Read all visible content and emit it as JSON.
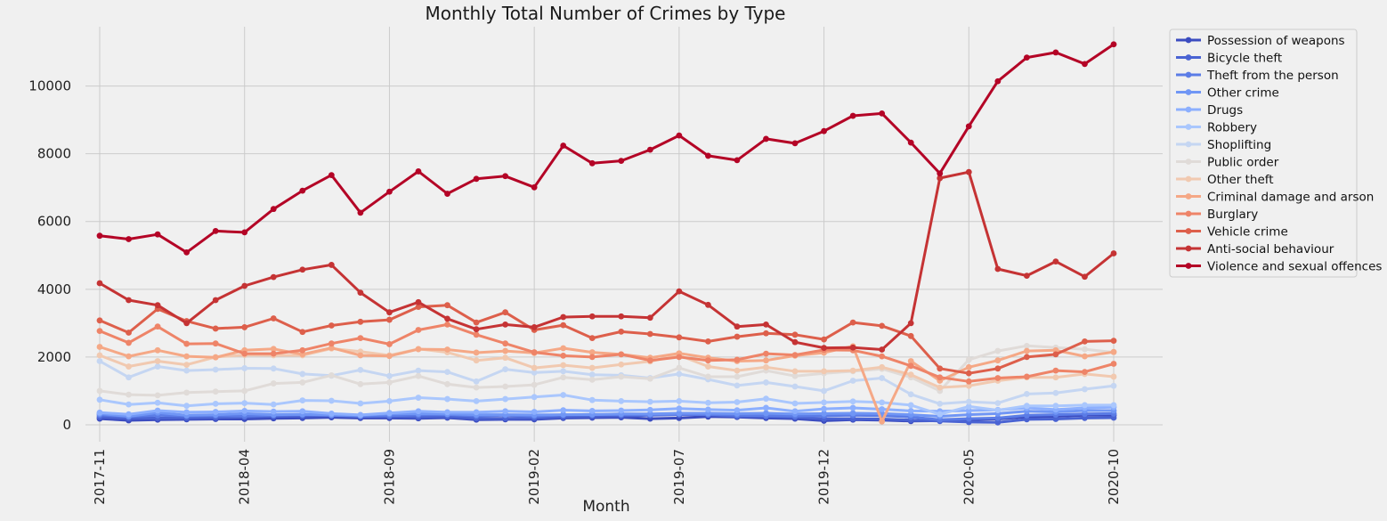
{
  "chart_data": {
    "type": "line",
    "title": "Monthly Total Number of Crimes by Type",
    "xlabel": "Month",
    "ylabel": "",
    "x": [
      "2017-11",
      "2017-12",
      "2018-01",
      "2018-02",
      "2018-03",
      "2018-04",
      "2018-05",
      "2018-06",
      "2018-07",
      "2018-08",
      "2018-09",
      "2018-10",
      "2018-11",
      "2018-12",
      "2019-01",
      "2019-02",
      "2019-03",
      "2019-04",
      "2019-05",
      "2019-06",
      "2019-07",
      "2019-08",
      "2019-09",
      "2019-10",
      "2019-11",
      "2019-12",
      "2020-01",
      "2020-02",
      "2020-03",
      "2020-04",
      "2020-05",
      "2020-06",
      "2020-07",
      "2020-08",
      "2020-09",
      "2020-10"
    ],
    "xticks": [
      "2017-11",
      "2018-04",
      "2018-09",
      "2019-02",
      "2019-07",
      "2019-12",
      "2020-05",
      "2020-10"
    ],
    "yticks": [
      0,
      2000,
      4000,
      6000,
      8000,
      10000
    ],
    "ylim": [
      -500,
      11750
    ],
    "grid": true,
    "legend_position": "outside-right",
    "series": [
      {
        "name": "Possession of weapons",
        "color": "#3b4cc0",
        "values": [
          180,
          130,
          150,
          160,
          170,
          170,
          190,
          200,
          220,
          200,
          200,
          190,
          210,
          150,
          160,
          160,
          200,
          210,
          220,
          180,
          200,
          240,
          230,
          200,
          180,
          120,
          150,
          140,
          110,
          120,
          150,
          170,
          230,
          250,
          280,
          280
        ]
      },
      {
        "name": "Bicycle theft",
        "color": "#4a63d3",
        "values": [
          230,
          190,
          200,
          200,
          210,
          230,
          250,
          260,
          270,
          250,
          240,
          230,
          240,
          190,
          190,
          200,
          230,
          250,
          260,
          280,
          300,
          300,
          250,
          240,
          220,
          180,
          180,
          170,
          140,
          110,
          80,
          70,
          160,
          170,
          200,
          210
        ]
      },
      {
        "name": "Theft from the person",
        "color": "#5b7ce6",
        "values": [
          290,
          240,
          280,
          260,
          270,
          260,
          280,
          300,
          280,
          250,
          270,
          290,
          300,
          260,
          280,
          250,
          290,
          310,
          300,
          290,
          310,
          300,
          280,
          270,
          260,
          270,
          280,
          270,
          230,
          150,
          180,
          200,
          280,
          300,
          320,
          330
        ]
      },
      {
        "name": "Other crime",
        "color": "#7096f5",
        "values": [
          330,
          250,
          360,
          280,
          300,
          330,
          300,
          310,
          290,
          280,
          320,
          330,
          320,
          300,
          300,
          290,
          300,
          300,
          320,
          320,
          340,
          340,
          330,
          340,
          320,
          330,
          340,
          330,
          300,
          250,
          300,
          330,
          400,
          380,
          420,
          420
        ]
      },
      {
        "name": "Drugs",
        "color": "#8caffe",
        "values": [
          360,
          310,
          420,
          370,
          380,
          410,
          390,
          400,
          330,
          290,
          350,
          400,
          370,
          370,
          400,
          380,
          430,
          410,
          420,
          440,
          480,
          450,
          430,
          500,
          400,
          470,
          500,
          460,
          410,
          400,
          420,
          440,
          500,
          450,
          500,
          520
        ]
      },
      {
        "name": "Robbery",
        "color": "#aac7fd",
        "values": [
          740,
          600,
          650,
          560,
          620,
          640,
          600,
          720,
          710,
          630,
          700,
          800,
          760,
          700,
          760,
          820,
          880,
          730,
          700,
          680,
          700,
          650,
          670,
          770,
          630,
          660,
          690,
          660,
          580,
          310,
          540,
          430,
          560,
          560,
          580,
          580
        ]
      },
      {
        "name": "Shoplifting",
        "color": "#c5d6f2",
        "values": [
          1880,
          1400,
          1720,
          1600,
          1630,
          1670,
          1660,
          1500,
          1450,
          1620,
          1440,
          1600,
          1560,
          1280,
          1640,
          1540,
          1580,
          1480,
          1460,
          1380,
          1500,
          1340,
          1160,
          1250,
          1130,
          1000,
          1300,
          1380,
          900,
          620,
          680,
          640,
          910,
          940,
          1050,
          1150
        ]
      },
      {
        "name": "Public order",
        "color": "#e0dbd8",
        "values": [
          1000,
          890,
          870,
          950,
          980,
          1000,
          1220,
          1250,
          1460,
          1200,
          1250,
          1440,
          1200,
          1100,
          1130,
          1180,
          1400,
          1330,
          1420,
          1360,
          1680,
          1420,
          1420,
          1600,
          1440,
          1520,
          1580,
          1650,
          1400,
          1000,
          1920,
          2180,
          2330,
          2280,
          2230,
          2140
        ]
      },
      {
        "name": "Other theft",
        "color": "#f1c9b0",
        "values": [
          2050,
          1720,
          1880,
          1770,
          2000,
          2060,
          2050,
          2050,
          2250,
          2160,
          2050,
          2240,
          2140,
          1900,
          1980,
          1680,
          1760,
          1680,
          1780,
          1870,
          2050,
          1720,
          1600,
          1700,
          1580,
          1580,
          1600,
          1700,
          1480,
          1100,
          1150,
          1300,
          1400,
          1400,
          1500,
          1420
        ]
      },
      {
        "name": "Criminal damage and arson",
        "color": "#f5a886",
        "values": [
          2300,
          2020,
          2200,
          2020,
          1990,
          2200,
          2240,
          2080,
          2270,
          2050,
          2030,
          2230,
          2220,
          2130,
          2180,
          2120,
          2260,
          2140,
          2080,
          1980,
          2110,
          1980,
          1880,
          1900,
          2040,
          2130,
          2320,
          100,
          1880,
          1300,
          1700,
          1900,
          2180,
          2200,
          2020,
          2150
        ]
      },
      {
        "name": "Burglary",
        "color": "#ee8468",
        "values": [
          2770,
          2420,
          2900,
          2390,
          2400,
          2100,
          2100,
          2200,
          2400,
          2560,
          2380,
          2800,
          2960,
          2660,
          2400,
          2140,
          2040,
          2000,
          2080,
          1900,
          2000,
          1900,
          1920,
          2100,
          2060,
          2210,
          2200,
          2020,
          1740,
          1400,
          1280,
          1380,
          1420,
          1600,
          1560,
          1800
        ]
      },
      {
        "name": "Vehicle crime",
        "color": "#dd5f4b",
        "values": [
          3080,
          2720,
          3420,
          3060,
          2840,
          2880,
          3140,
          2740,
          2930,
          3040,
          3100,
          3480,
          3530,
          3020,
          3320,
          2800,
          2940,
          2560,
          2750,
          2680,
          2580,
          2460,
          2600,
          2700,
          2660,
          2520,
          3020,
          2920,
          2620,
          1660,
          1520,
          1660,
          2000,
          2080,
          2460,
          2480
        ]
      },
      {
        "name": "Anti-social behaviour",
        "color": "#c53334",
        "values": [
          4180,
          3680,
          3530,
          3000,
          3680,
          4100,
          4360,
          4580,
          4720,
          3900,
          3320,
          3620,
          3130,
          2820,
          2960,
          2880,
          3180,
          3200,
          3200,
          3160,
          3940,
          3540,
          2900,
          2960,
          2440,
          2270,
          2280,
          2220,
          3000,
          7280,
          7460,
          4600,
          4400,
          4820,
          4370,
          5060
        ]
      },
      {
        "name": "Violence and sexual offences",
        "color": "#b40426",
        "values": [
          5580,
          5480,
          5620,
          5090,
          5720,
          5680,
          6370,
          6910,
          7370,
          6260,
          6880,
          7480,
          6820,
          7260,
          7340,
          7010,
          8240,
          7720,
          7790,
          8120,
          8540,
          7940,
          7810,
          8440,
          8310,
          8670,
          9120,
          9190,
          8330,
          7420,
          8810,
          10140,
          10840,
          10990,
          10650,
          11230
        ]
      }
    ]
  }
}
